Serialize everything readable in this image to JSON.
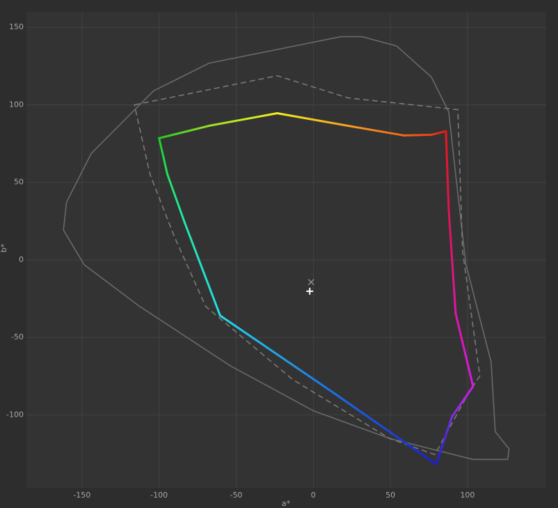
{
  "chart_data": {
    "type": "line",
    "x_label": "a*",
    "y_label": "b*",
    "xlim": [
      -186,
      151
    ],
    "ylim": [
      -147,
      160
    ],
    "xticks": [
      -150,
      -100,
      -50,
      0,
      50,
      100
    ],
    "yticks": [
      150,
      100,
      50,
      0,
      -50,
      -100
    ],
    "grid": true,
    "series": [
      {
        "style": "solid",
        "color": "#6a6a6a",
        "closed": true,
        "x": [
          18,
          -22.5,
          -67.6,
          -103.6,
          -144,
          -160,
          -162,
          -148.6,
          -112.6,
          -54,
          0,
          49.5,
          103.6,
          126,
          127,
          118,
          115.3,
          99,
          92.3,
          87.8,
          76.6,
          54,
          31.5
        ],
        "values": [
          144,
          135.9,
          126.9,
          109,
          68.6,
          37.2,
          19.3,
          -3.1,
          -30,
          -68.2,
          -97.3,
          -115.2,
          -128.7,
          -128.7,
          -122,
          -110.8,
          -65.9,
          -3.1,
          55.2,
          95.5,
          117.9,
          138,
          144
        ]
      },
      {
        "style": "dashed",
        "color": "#7a7a7a",
        "closed": true,
        "x": [
          -116,
          -23.4,
          22.5,
          93.7,
          96.8,
          108,
          101.8,
          78.8,
          49.5,
          -13.5,
          -69.8,
          -90,
          -105.9
        ],
        "values": [
          100,
          118.8,
          104.5,
          96.9,
          5.8,
          -74.9,
          -83.9,
          -125.6,
          -115.2,
          -77.1,
          -30,
          14.8,
          55.2
        ]
      },
      {
        "style": "gradient",
        "closed": true,
        "x": [
          -23.4,
          22.5,
          58.6,
          76.6,
          86,
          87.8,
          92.3,
          103.6,
          90,
          79.7,
          13.5,
          -60.4,
          -83.3,
          -94.6,
          -100,
          -67.6
        ],
        "values": [
          94.6,
          86.5,
          80.3,
          80.7,
          83,
          32.7,
          -34.5,
          -81.6,
          -101,
          -131.8,
          -86,
          -35.9,
          23.8,
          55.2,
          78.5,
          86.5
        ],
        "colors": [
          "#f5ee22",
          "#f5a020",
          "#ee6a18",
          "#e84018",
          "#e81818",
          "#e01450",
          "#e014a8",
          "#d818e8",
          "#7a30e0",
          "#1a1ed8",
          "#1a70e8",
          "#22dcea",
          "#22e8a8",
          "#22e060",
          "#22cc22",
          "#98e024"
        ]
      }
    ],
    "markers": [
      {
        "x": -2.3,
        "y": -20.2,
        "symbol": "plus",
        "color": "#ffffff"
      },
      {
        "x": -1.4,
        "y": -14.3,
        "symbol": "x",
        "color": "#9a9a9a"
      }
    ]
  }
}
